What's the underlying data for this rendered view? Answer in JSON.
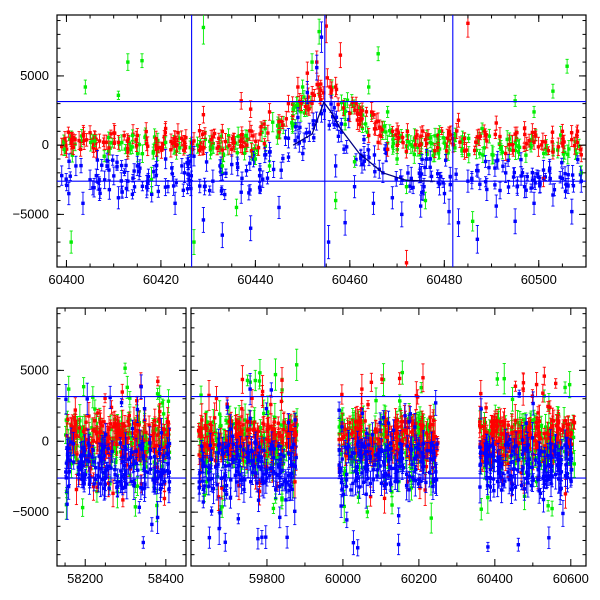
{
  "colors": {
    "green": "#00ee00",
    "red": "#ff0000",
    "blue": "#0000ff",
    "frame": "#000000"
  },
  "chart_data": [
    {
      "type": "scatter",
      "title": "",
      "xlabel": "",
      "ylabel": "",
      "xlim": [
        60398,
        60510
      ],
      "ylim": [
        -8800,
        9400
      ],
      "x_ticks": [
        60400,
        60420,
        60440,
        60460,
        60480,
        60500
      ],
      "x_tick_labels": [
        "60400",
        "60420",
        "60440",
        "60460",
        "60480",
        "60500"
      ],
      "y_ticks": [
        -5000,
        0,
        5000
      ],
      "y_tick_labels": [
        "−5000",
        "0",
        "5000"
      ],
      "hlines": [
        3150,
        -2600
      ],
      "vlines": [
        60426.5,
        60454.7,
        60481.8
      ],
      "model_curve": [
        [
          60448,
          0
        ],
        [
          60452,
          800
        ],
        [
          60454.5,
          3100
        ],
        [
          60456,
          2400
        ],
        [
          60458,
          1200
        ],
        [
          60462,
          -600
        ],
        [
          60467,
          -2000
        ],
        [
          60472,
          -2550
        ],
        [
          60478,
          -2600
        ]
      ],
      "series": [
        {
          "color": "green",
          "points": [
            [
              60399.5,
              -300,
              450
            ],
            [
              60401,
              -7000,
              800
            ],
            [
              60404,
              4200,
              500
            ],
            [
              60406,
              300,
              400
            ],
            [
              60408,
              -800,
              400
            ],
            [
              60411,
              3600,
              300
            ],
            [
              60413,
              6000,
              600
            ],
            [
              60414,
              700,
              400
            ],
            [
              60416,
              6100,
              500
            ],
            [
              60418,
              -2500,
              900
            ],
            [
              60421,
              200,
              400
            ],
            [
              60424,
              -200,
              400
            ],
            [
              60427,
              -7000,
              900
            ],
            [
              60429,
              8500,
              1200
            ],
            [
              60431,
              -200,
              400
            ],
            [
              60433,
              -1500,
              500
            ],
            [
              60436,
              -4500,
              600
            ],
            [
              60438,
              700,
              400
            ],
            [
              60440,
              -1000,
              400
            ],
            [
              60443,
              -1500,
              400
            ],
            [
              60445,
              1500,
              400
            ],
            [
              60448,
              2600,
              400
            ],
            [
              60450,
              4200,
              500
            ],
            [
              60452,
              6000,
              600
            ],
            [
              60453.5,
              8200,
              900
            ],
            [
              60457,
              -4000,
              600
            ],
            [
              60459,
              1500,
              400
            ],
            [
              60461,
              -1200,
              400
            ],
            [
              60464,
              4200,
              500
            ],
            [
              60466,
              6600,
              500
            ],
            [
              60468,
              2400,
              400
            ],
            [
              60470,
              -1000,
              400
            ],
            [
              60472,
              -3000,
              500
            ],
            [
              60476,
              -4000,
              600
            ],
            [
              60479,
              1000,
              400
            ],
            [
              60486,
              -5500,
              700
            ],
            [
              60488,
              1200,
              400
            ],
            [
              60492,
              -300,
              400
            ],
            [
              60495,
              3200,
              400
            ],
            [
              60499,
              2400,
              400
            ],
            [
              60503,
              3900,
              500
            ],
            [
              60506,
              5700,
              500
            ],
            [
              60509,
              -2000,
              500
            ]
          ]
        },
        {
          "color": "red",
          "points": [
            [
              60399,
              -100,
              600
            ],
            [
              60401,
              400,
              500
            ],
            [
              60403,
              -300,
              500
            ],
            [
              60405,
              900,
              500
            ],
            [
              60407,
              300,
              500
            ],
            [
              60409,
              -200,
              500
            ],
            [
              60411,
              200,
              500
            ],
            [
              60413,
              -500,
              500
            ],
            [
              60415,
              700,
              500
            ],
            [
              60417,
              100,
              500
            ],
            [
              60419,
              -300,
              500
            ],
            [
              60421,
              1200,
              500
            ],
            [
              60423,
              500,
              500
            ],
            [
              60425,
              200,
              500
            ],
            [
              60427,
              300,
              600
            ],
            [
              60429,
              2200,
              600
            ],
            [
              60431,
              600,
              500
            ],
            [
              60433,
              1000,
              500
            ],
            [
              60435,
              -300,
              500
            ],
            [
              60437,
              3200,
              600
            ],
            [
              60439,
              2600,
              600
            ],
            [
              60441,
              800,
              500
            ],
            [
              60443,
              2400,
              600
            ],
            [
              60445,
              1700,
              500
            ],
            [
              60447,
              3000,
              600
            ],
            [
              60449,
              4200,
              700
            ],
            [
              60451,
              5200,
              800
            ],
            [
              60453,
              6000,
              800
            ],
            [
              60455,
              8600,
              1200
            ],
            [
              60457,
              4200,
              700
            ],
            [
              60458,
              6500,
              900
            ],
            [
              60460,
              2300,
              600
            ],
            [
              60462,
              1500,
              500
            ],
            [
              60464,
              700,
              500
            ],
            [
              60466,
              200,
              500
            ],
            [
              60468,
              -300,
              500
            ],
            [
              60470,
              1100,
              500
            ],
            [
              60472,
              -8500,
              900
            ],
            [
              60474,
              600,
              500
            ],
            [
              60476,
              400,
              500
            ],
            [
              60478,
              -400,
              500
            ],
            [
              60481,
              800,
              500
            ],
            [
              60483,
              1800,
              500
            ],
            [
              60485,
              8800,
              1000
            ],
            [
              60487,
              600,
              500
            ],
            [
              60489,
              300,
              500
            ],
            [
              60491,
              1600,
              500
            ],
            [
              60493,
              -600,
              500
            ],
            [
              60495,
              800,
              500
            ],
            [
              60497,
              1200,
              500
            ],
            [
              60499,
              200,
              500
            ],
            [
              60501,
              -2400,
              600
            ],
            [
              60503,
              -500,
              500
            ],
            [
              60505,
              1000,
              500
            ],
            [
              60507,
              400,
              500
            ],
            [
              60509,
              -700,
              500
            ]
          ]
        },
        {
          "color": "blue",
          "points": [
            [
              60399,
              -2200,
              700
            ],
            [
              60400.5,
              -3500,
              800
            ],
            [
              60402,
              -1500,
              700
            ],
            [
              60403.5,
              -4200,
              800
            ],
            [
              60405,
              -2500,
              700
            ],
            [
              60407,
              -3200,
              800
            ],
            [
              60409,
              -1800,
              700
            ],
            [
              60411,
              -3800,
              800
            ],
            [
              60413,
              -2600,
              700
            ],
            [
              60415,
              -1500,
              700
            ],
            [
              60417,
              -3000,
              800
            ],
            [
              60419,
              -2200,
              700
            ],
            [
              60421,
              -1000,
              700
            ],
            [
              60423,
              -4200,
              800
            ],
            [
              60425,
              -2000,
              700
            ],
            [
              60427,
              -800,
              700
            ],
            [
              60429,
              -5400,
              900
            ],
            [
              60431,
              -2600,
              800
            ],
            [
              60433,
              -6500,
              900
            ],
            [
              60435,
              -1400,
              700
            ],
            [
              60437,
              -3400,
              800
            ],
            [
              60439,
              -6000,
              900
            ],
            [
              60441,
              -2200,
              700
            ],
            [
              60443,
              -500,
              700
            ],
            [
              60445,
              -4500,
              800
            ],
            [
              60447,
              500,
              700
            ],
            [
              60449,
              2000,
              700
            ],
            [
              60451,
              3800,
              800
            ],
            [
              60453,
              5600,
              900
            ],
            [
              60454,
              7800,
              1100
            ],
            [
              60455.5,
              -7000,
              1200
            ],
            [
              60457,
              -1500,
              800
            ],
            [
              60459,
              -5600,
              900
            ],
            [
              60461,
              -3000,
              800
            ],
            [
              60463,
              -800,
              700
            ],
            [
              60465,
              -4200,
              800
            ],
            [
              60467,
              -2000,
              700
            ],
            [
              60469,
              -3800,
              800
            ],
            [
              60471,
              -5000,
              900
            ],
            [
              60473,
              -2400,
              800
            ],
            [
              60475,
              -4400,
              800
            ],
            [
              60477,
              -1600,
              700
            ],
            [
              60479,
              -2800,
              800
            ],
            [
              60481,
              -4800,
              900
            ],
            [
              60483,
              -5600,
              1000
            ],
            [
              60485,
              -2600,
              800
            ],
            [
              60487,
              -6800,
              1000
            ],
            [
              60489,
              -3200,
              800
            ],
            [
              60491,
              -4400,
              800
            ],
            [
              60493,
              -2000,
              700
            ],
            [
              60495,
              -5500,
              900
            ],
            [
              60497,
              -3000,
              800
            ],
            [
              60499,
              -4200,
              800
            ],
            [
              60501,
              -1800,
              700
            ],
            [
              60503,
              -3600,
              800
            ],
            [
              60505,
              -2400,
              700
            ],
            [
              60507,
              -4800,
              900
            ],
            [
              60509,
              -2600,
              800
            ]
          ]
        }
      ]
    },
    {
      "type": "scatter",
      "title": "",
      "xlabel": "",
      "ylabel": "",
      "xlim": [
        58130,
        60640
      ],
      "ylim": [
        -8800,
        9400
      ],
      "x_ticks": [
        58200,
        58400,
        59800,
        60000,
        60200,
        60400,
        60600
      ],
      "x_tick_labels": [
        "58200",
        "58400",
        "59800",
        "60000",
        "60200",
        "60400",
        "60600"
      ],
      "y_ticks": [
        -5000,
        0,
        5000
      ],
      "y_tick_labels": [
        "−5000",
        "0",
        "5000"
      ],
      "hlines": [
        3150,
        -2600
      ],
      "segments": [
        [
          58130,
          58450
        ],
        [
          59600,
          60640
        ]
      ],
      "seasons": [
        [
          58150,
          58410
        ],
        [
          59620,
          59880
        ],
        [
          59990,
          60250
        ],
        [
          60360,
          60610
        ]
      ],
      "series": [
        {
          "color": "green",
          "points": []
        },
        {
          "color": "red",
          "points": []
        },
        {
          "color": "blue",
          "points": []
        }
      ]
    }
  ]
}
